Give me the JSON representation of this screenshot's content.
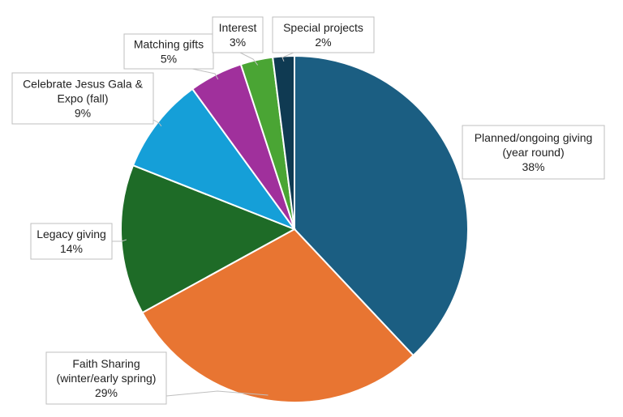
{
  "chart_data": {
    "type": "pie",
    "title": "",
    "slices": [
      {
        "label_lines": [
          "Planned/ongoing giving",
          "(year round)"
        ],
        "pct_label": "38%",
        "value": 38,
        "color": "#1b5e82"
      },
      {
        "label_lines": [
          "Faith Sharing",
          "(winter/early spring)"
        ],
        "pct_label": "29%",
        "value": 29,
        "color": "#e87532"
      },
      {
        "label_lines": [
          "Legacy giving"
        ],
        "pct_label": "14%",
        "value": 14,
        "color": "#1e6b27"
      },
      {
        "label_lines": [
          "Celebrate Jesus Gala &",
          "Expo (fall)"
        ],
        "pct_label": "9%",
        "value": 9,
        "color": "#159fd8"
      },
      {
        "label_lines": [
          "Matching gifts"
        ],
        "pct_label": "5%",
        "value": 5,
        "color": "#a0309c"
      },
      {
        "label_lines": [
          "Interest"
        ],
        "pct_label": "3%",
        "value": 3,
        "color": "#4aa534"
      },
      {
        "label_lines": [
          "Special projects"
        ],
        "pct_label": "2%",
        "value": 2,
        "color": "#0f3a52"
      }
    ]
  }
}
